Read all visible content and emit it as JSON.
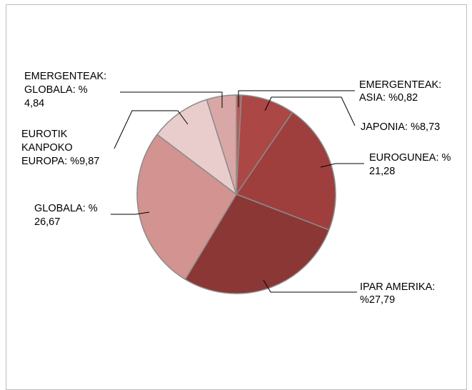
{
  "chart_data": {
    "type": "pie",
    "slices": [
      {
        "label_lines": [
          "EMERGENTEAK:",
          "ASIA: %0,82"
        ],
        "value": 0.82,
        "color": "#b75a57"
      },
      {
        "label_lines": [
          "JAPONIA: %8,73"
        ],
        "value": 8.73,
        "color": "#ab4745"
      },
      {
        "label_lines": [
          "EUROGUNEA: %",
          "21,28"
        ],
        "value": 21.28,
        "color": "#9e3f3e"
      },
      {
        "label_lines": [
          "IPAR AMERIKA:",
          "%27,79"
        ],
        "value": 27.79,
        "color": "#8b3735"
      },
      {
        "label_lines": [
          "GLOBALA: %",
          "26,67"
        ],
        "value": 26.67,
        "color": "#d29391"
      },
      {
        "label_lines": [
          "EUROTIK",
          "KANPOKO",
          "EUROPA: %9,87"
        ],
        "value": 9.87,
        "color": "#e9cdcd"
      },
      {
        "label_lines": [
          "EMERGENTEAK:",
          "GLOBALA: %",
          "4,84"
        ],
        "value": 4.84,
        "color": "#d9a7a5"
      }
    ],
    "legend": "none",
    "start_angle": "12 o'clock, clockwise"
  }
}
